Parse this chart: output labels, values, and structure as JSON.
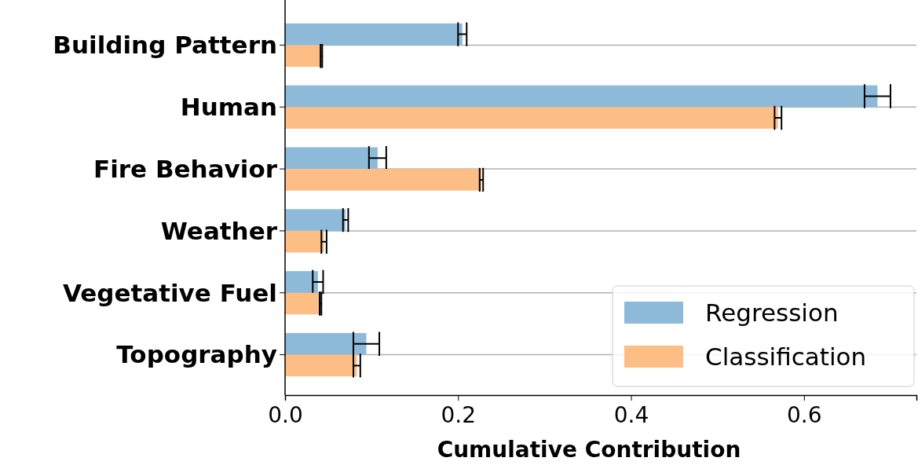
{
  "chart_data": {
    "type": "bar",
    "orientation": "horizontal",
    "xlabel": "Cumulative Contribution",
    "categories": [
      "Building Pattern",
      "Human",
      "Fire Behavior",
      "Weather",
      "Vegetative Fuel",
      "Topography"
    ],
    "series": [
      {
        "name": "Regression",
        "color": "#8ebad9",
        "values": [
          0.205,
          0.685,
          0.107,
          0.07,
          0.038,
          0.094
        ],
        "errors": [
          0.005,
          0.015,
          0.01,
          0.003,
          0.006,
          0.015
        ]
      },
      {
        "name": "Classification",
        "color": "#fdbe86",
        "values": [
          0.042,
          0.57,
          0.227,
          0.045,
          0.041,
          0.083
        ],
        "errors": [
          0.001,
          0.004,
          0.002,
          0.003,
          0.001,
          0.004
        ]
      }
    ],
    "xlim": [
      0,
      0.73
    ],
    "xticks": [
      {
        "value": 0,
        "label": "0.0"
      },
      {
        "value": 0.2,
        "label": "0.2"
      },
      {
        "value": 0.4,
        "label": "0.4"
      },
      {
        "value": 0.6,
        "label": "0.6"
      }
    ],
    "grid": "y",
    "legend": "bottom right"
  }
}
